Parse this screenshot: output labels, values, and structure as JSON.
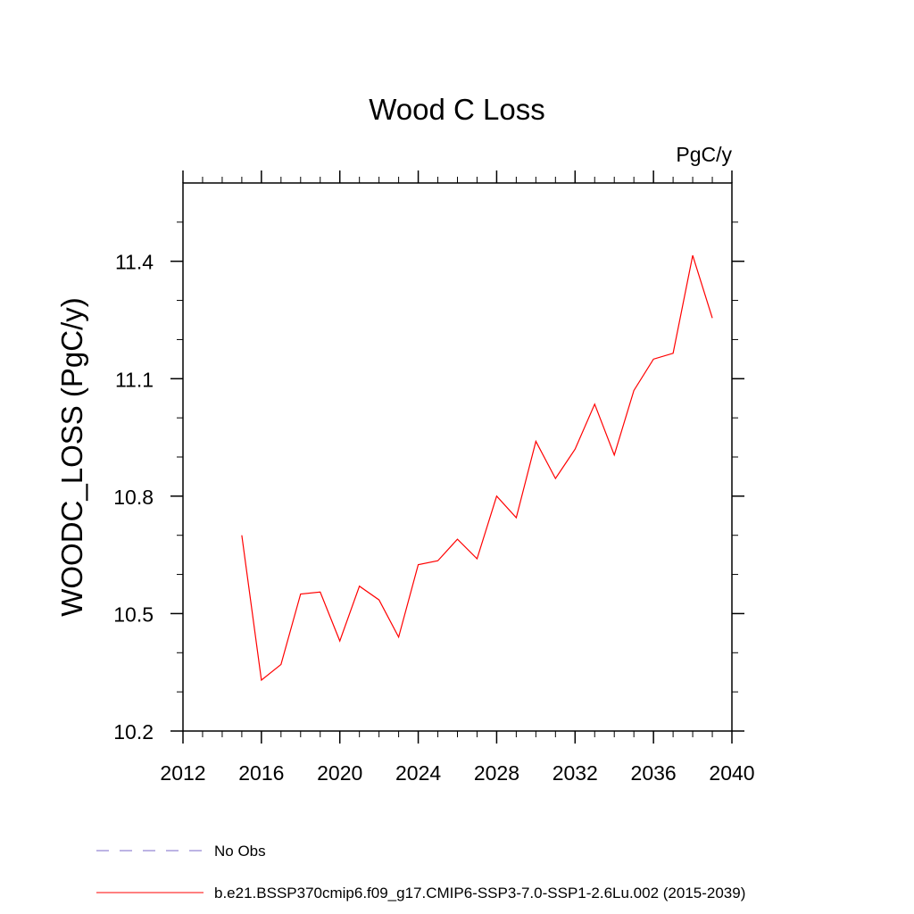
{
  "chart_data": {
    "type": "line",
    "title": "Wood C Loss",
    "units": "PgC/y",
    "xlabel": "",
    "ylabel": "WOODC_LOSS  (PgC/y)",
    "xlim": [
      2012,
      2040
    ],
    "ylim": [
      10.2,
      11.6
    ],
    "x_ticks": [
      2012,
      2016,
      2020,
      2024,
      2028,
      2032,
      2036,
      2040
    ],
    "x_tick_labels": [
      "2012",
      "2016",
      "2020",
      "2024",
      "2028",
      "2032",
      "2036",
      "2040"
    ],
    "y_ticks": [
      10.2,
      10.5,
      10.8,
      11.1,
      11.4
    ],
    "y_tick_labels": [
      "10.2",
      "10.5",
      "10.8",
      "11.1",
      "11.4"
    ],
    "grid": false,
    "legend_position": "bottom-left",
    "series": [
      {
        "name": "b.e21.BSSP370cmip6.f09_g17.CMIP6-SSP3-7.0-SSP1-2.6Lu.002 (2015-2039)",
        "color": "#ff0000",
        "style": "solid",
        "x": [
          2015,
          2016,
          2017,
          2018,
          2019,
          2020,
          2021,
          2022,
          2023,
          2024,
          2025,
          2026,
          2027,
          2028,
          2029,
          2030,
          2031,
          2032,
          2033,
          2034,
          2035,
          2036,
          2037,
          2038,
          2039
        ],
        "values": [
          10.7,
          10.33,
          10.37,
          10.55,
          10.555,
          10.43,
          10.57,
          10.535,
          10.44,
          10.625,
          10.635,
          10.69,
          10.64,
          10.8,
          10.745,
          10.94,
          10.845,
          10.92,
          11.035,
          10.905,
          11.07,
          11.15,
          11.165,
          11.415,
          11.255
        ]
      }
    ],
    "legend": [
      {
        "label": "No Obs",
        "color": "#7b68c8",
        "style": "dashed"
      },
      {
        "label": "b.e21.BSSP370cmip6.f09_g17.CMIP6-SSP3-7.0-SSP1-2.6Lu.002 (2015-2039)",
        "color": "#ff0000",
        "style": "solid"
      }
    ]
  }
}
